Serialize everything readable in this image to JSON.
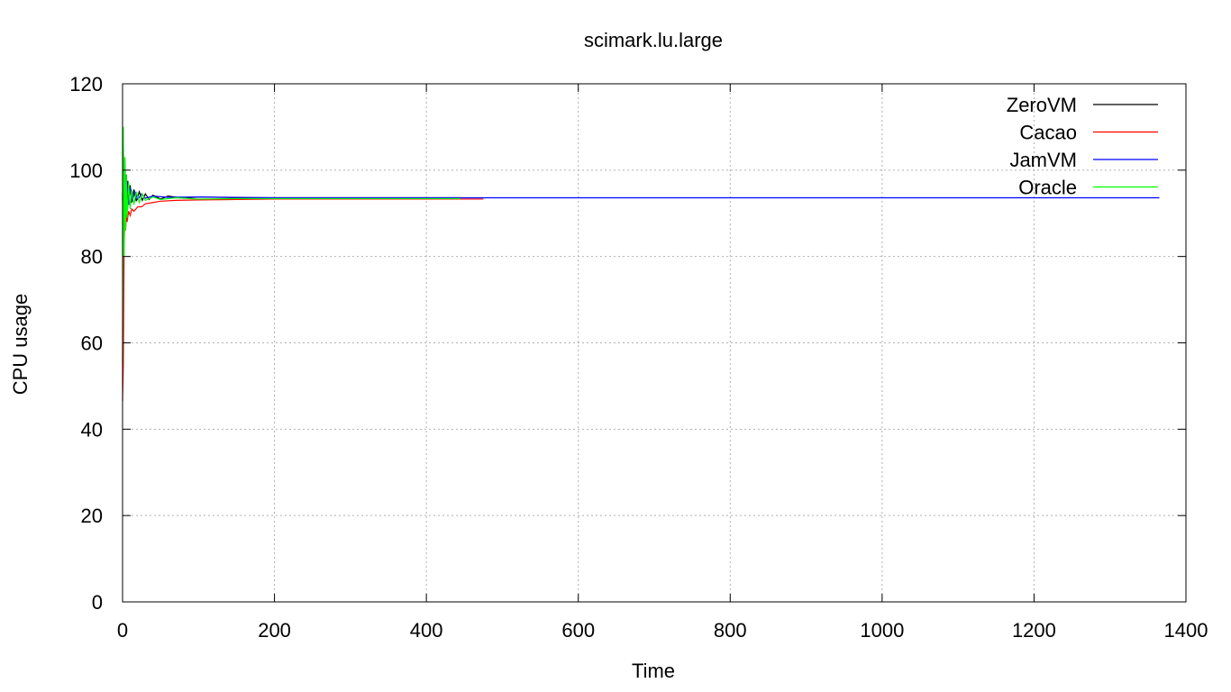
{
  "chart_data": {
    "type": "line",
    "title": "scimark.lu.large",
    "xlabel": "Time",
    "ylabel": "CPU usage",
    "xlim": [
      0,
      1400
    ],
    "ylim": [
      0,
      120
    ],
    "x_ticks": [
      0,
      200,
      400,
      600,
      800,
      1000,
      1200,
      1400
    ],
    "y_ticks": [
      0,
      20,
      40,
      60,
      80,
      100,
      120
    ],
    "grid": true,
    "legend_position": "top-right",
    "series": [
      {
        "name": "ZeroVM",
        "color": "#000000",
        "points": [
          [
            0,
            93.0
          ],
          [
            1,
            107.0
          ],
          [
            2,
            88.0
          ],
          [
            3,
            103.0
          ],
          [
            4,
            90.0
          ],
          [
            5,
            99.0
          ],
          [
            6,
            91.5
          ],
          [
            7,
            97.5
          ],
          [
            8,
            92.0
          ],
          [
            10,
            96.5
          ],
          [
            12,
            92.5
          ],
          [
            15,
            95.5
          ],
          [
            18,
            92.8
          ],
          [
            22,
            95.0
          ],
          [
            26,
            93.0
          ],
          [
            30,
            94.5
          ],
          [
            35,
            93.2
          ],
          [
            40,
            94.2
          ],
          [
            50,
            93.3
          ],
          [
            60,
            94.0
          ],
          [
            80,
            93.5
          ],
          [
            100,
            93.8
          ],
          [
            150,
            93.6
          ],
          [
            200,
            93.6
          ],
          [
            300,
            93.6
          ],
          [
            400,
            93.6
          ],
          [
            445,
            93.6
          ]
        ]
      },
      {
        "name": "Cacao",
        "color": "#ff0000",
        "points": [
          [
            0,
            46.5
          ],
          [
            1,
            55.0
          ],
          [
            2,
            82.0
          ],
          [
            3,
            88.0
          ],
          [
            4,
            86.0
          ],
          [
            5,
            90.0
          ],
          [
            6,
            88.0
          ],
          [
            8,
            90.5
          ],
          [
            10,
            89.5
          ],
          [
            12,
            91.0
          ],
          [
            15,
            90.5
          ],
          [
            20,
            91.5
          ],
          [
            25,
            91.5
          ],
          [
            30,
            92.2
          ],
          [
            40,
            92.5
          ],
          [
            50,
            92.8
          ],
          [
            70,
            93.0
          ],
          [
            100,
            93.1
          ],
          [
            150,
            93.2
          ],
          [
            200,
            93.3
          ],
          [
            300,
            93.3
          ],
          [
            400,
            93.3
          ],
          [
            475,
            93.3
          ]
        ]
      },
      {
        "name": "JamVM",
        "color": "#0000ff",
        "points": [
          [
            0,
            94.0
          ],
          [
            1,
            104.0
          ],
          [
            2,
            89.0
          ],
          [
            3,
            100.0
          ],
          [
            4,
            91.0
          ],
          [
            6,
            97.5
          ],
          [
            8,
            92.0
          ],
          [
            10,
            96.0
          ],
          [
            13,
            92.8
          ],
          [
            16,
            95.0
          ],
          [
            20,
            93.2
          ],
          [
            25,
            94.5
          ],
          [
            30,
            93.5
          ],
          [
            40,
            94.0
          ],
          [
            60,
            93.7
          ],
          [
            100,
            93.8
          ],
          [
            200,
            93.6
          ],
          [
            400,
            93.6
          ],
          [
            800,
            93.6
          ],
          [
            1200,
            93.6
          ],
          [
            1365,
            93.6
          ]
        ]
      },
      {
        "name": "Oracle",
        "color": "#00ff00",
        "points": [
          [
            0,
            55.0
          ],
          [
            1,
            110.0
          ],
          [
            2,
            80.0
          ],
          [
            3,
            103.0
          ],
          [
            4,
            86.0
          ],
          [
            5,
            99.0
          ],
          [
            6,
            89.0
          ],
          [
            8,
            97.0
          ],
          [
            10,
            91.0
          ],
          [
            12,
            95.5
          ],
          [
            15,
            92.0
          ],
          [
            18,
            95.0
          ],
          [
            22,
            92.5
          ],
          [
            26,
            94.5
          ],
          [
            30,
            93.0
          ],
          [
            40,
            93.8
          ],
          [
            50,
            93.2
          ],
          [
            70,
            93.6
          ],
          [
            100,
            93.3
          ],
          [
            150,
            93.4
          ],
          [
            200,
            93.4
          ],
          [
            300,
            93.4
          ],
          [
            445,
            93.4
          ]
        ]
      }
    ]
  }
}
